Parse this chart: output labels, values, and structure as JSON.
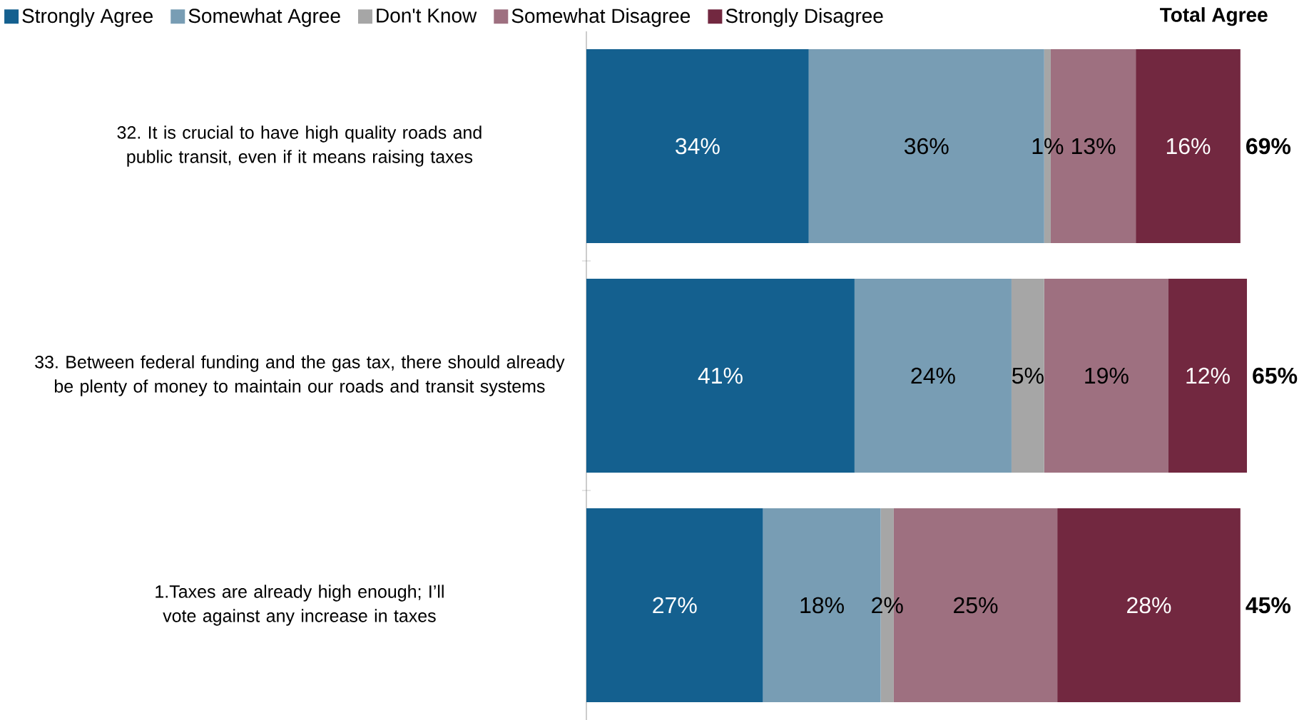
{
  "chart_data": {
    "type": "bar",
    "orientation": "horizontal",
    "stacked": true,
    "categories": [
      "32. It is crucial to have high quality roads and public transit, even if it means raising taxes",
      "33. Between federal funding and the gas tax, there should already be plenty of money to maintain our roads and transit systems",
      "1.Taxes are already high enough; I’ll vote against any increase in taxes"
    ],
    "series": [
      {
        "name": "Strongly Agree",
        "color": "#14608f",
        "values": [
          34,
          41,
          27
        ],
        "value_labels": [
          "34%",
          "41%",
          "27%"
        ]
      },
      {
        "name": "Somewhat Agree",
        "color": "#789db4",
        "values": [
          36,
          24,
          18
        ],
        "value_labels": [
          "36%",
          "24%",
          "18%"
        ]
      },
      {
        "name": "Don't Know",
        "color": "#a6a6a6",
        "values": [
          1,
          5,
          2
        ],
        "value_labels": [
          "1%",
          "5%",
          "2%"
        ]
      },
      {
        "name": "Somewhat Disagree",
        "color": "#9e7080",
        "values": [
          13,
          19,
          25
        ],
        "value_labels": [
          "13%",
          "19%",
          "25%"
        ]
      },
      {
        "name": "Strongly Disagree",
        "color": "#722840",
        "values": [
          16,
          12,
          28
        ],
        "value_labels": [
          "16%",
          "12%",
          "28%"
        ]
      }
    ],
    "legend": "top",
    "annotations": [
      "Total Agree",
      "69%",
      "65%",
      "45%"
    ]
  }
}
